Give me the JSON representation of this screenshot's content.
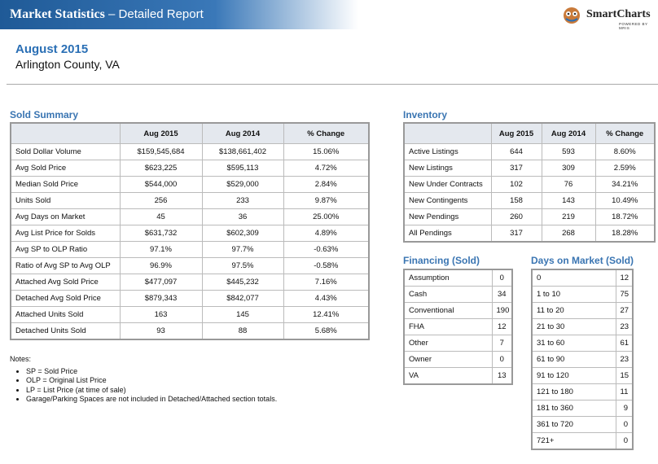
{
  "header": {
    "title": "Market Statistics",
    "subtitle": "– Detailed Report",
    "logo": "SmartCharts",
    "logo_tagline": "POWERED BY MRIS"
  },
  "report": {
    "period": "August 2015",
    "location": "Arlington County, VA"
  },
  "sold_summary": {
    "title": "Sold Summary",
    "columns": [
      "Aug 2015",
      "Aug 2014",
      "% Change"
    ],
    "rows": [
      [
        "Sold Dollar Volume",
        "$159,545,684",
        "$138,661,402",
        "15.06%"
      ],
      [
        "Avg Sold Price",
        "$623,225",
        "$595,113",
        "4.72%"
      ],
      [
        "Median Sold Price",
        "$544,000",
        "$529,000",
        "2.84%"
      ],
      [
        "Units Sold",
        "256",
        "233",
        "9.87%"
      ],
      [
        "Avg Days on Market",
        "45",
        "36",
        "25.00%"
      ],
      [
        "Avg List Price for Solds",
        "$631,732",
        "$602,309",
        "4.89%"
      ],
      [
        "Avg SP to OLP Ratio",
        "97.1%",
        "97.7%",
        "-0.63%"
      ],
      [
        "Ratio of Avg SP to Avg OLP",
        "96.9%",
        "97.5%",
        "-0.58%"
      ],
      [
        "Attached Avg Sold Price",
        "$477,097",
        "$445,232",
        "7.16%"
      ],
      [
        "Detached Avg Sold Price",
        "$879,343",
        "$842,077",
        "4.43%"
      ],
      [
        "Attached Units Sold",
        "163",
        "145",
        "12.41%"
      ],
      [
        "Detached Units Sold",
        "93",
        "88",
        "5.68%"
      ]
    ]
  },
  "inventory": {
    "title": "Inventory",
    "columns": [
      "Aug 2015",
      "Aug 2014",
      "% Change"
    ],
    "rows": [
      [
        "Active Listings",
        "644",
        "593",
        "8.60%"
      ],
      [
        "New Listings",
        "317",
        "309",
        "2.59%"
      ],
      [
        "New Under Contracts",
        "102",
        "76",
        "34.21%"
      ],
      [
        "New Contingents",
        "158",
        "143",
        "10.49%"
      ],
      [
        "New Pendings",
        "260",
        "219",
        "18.72%"
      ],
      [
        "All Pendings",
        "317",
        "268",
        "18.28%"
      ]
    ]
  },
  "financing": {
    "title": "Financing (Sold)",
    "rows": [
      [
        "Assumption",
        "0"
      ],
      [
        "Cash",
        "34"
      ],
      [
        "Conventional",
        "190"
      ],
      [
        "FHA",
        "12"
      ],
      [
        "Other",
        "7"
      ],
      [
        "Owner",
        "0"
      ],
      [
        "VA",
        "13"
      ]
    ]
  },
  "days_on_market": {
    "title": "Days on Market (Sold)",
    "rows": [
      [
        "0",
        "12"
      ],
      [
        "1 to 10",
        "75"
      ],
      [
        "11 to 20",
        "27"
      ],
      [
        "21 to 30",
        "23"
      ],
      [
        "31 to 60",
        "61"
      ],
      [
        "61 to 90",
        "23"
      ],
      [
        "91 to 120",
        "15"
      ],
      [
        "121 to 180",
        "11"
      ],
      [
        "181 to 360",
        "9"
      ],
      [
        "361 to 720",
        "0"
      ],
      [
        "721+",
        "0"
      ]
    ]
  },
  "notes": {
    "title": "Notes:",
    "items": [
      "SP = Sold Price",
      "OLP = Original List Price",
      "LP = List Price (at time of sale)",
      "Garage/Parking Spaces are not included in Detached/Attached section totals."
    ]
  }
}
